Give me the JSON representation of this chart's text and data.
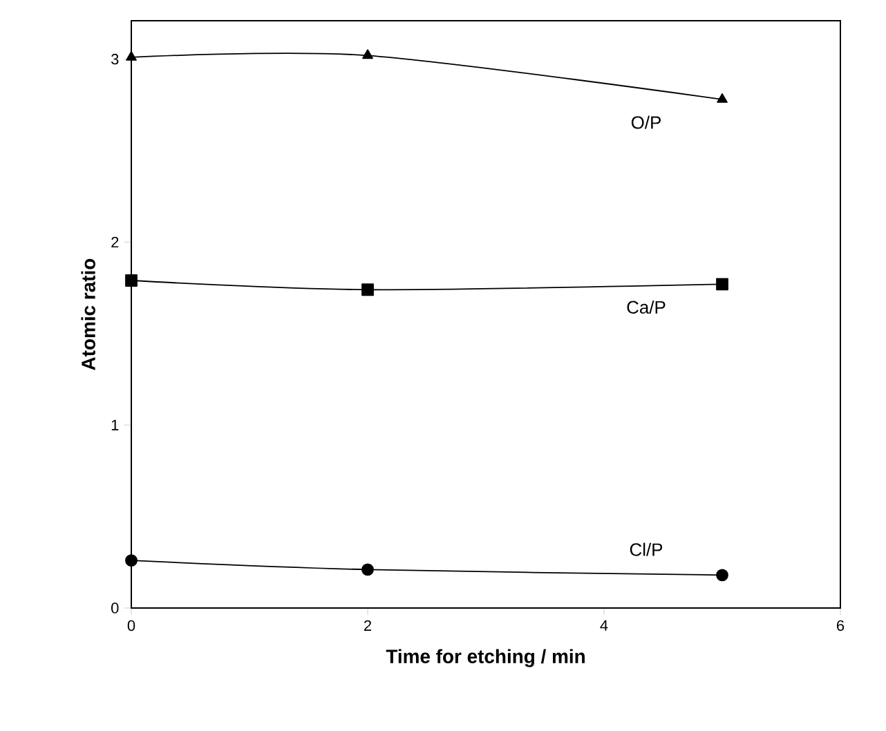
{
  "chart_data": {
    "type": "line",
    "xlabel": "Time for etching / min",
    "ylabel": "Atomic ratio",
    "xlim": [
      0,
      6
    ],
    "xticks": [
      0,
      2,
      4,
      6
    ],
    "ylim": [
      0,
      3.21
    ],
    "yticks": [
      0,
      1,
      2,
      3
    ],
    "grid": false,
    "legend": false,
    "series": [
      {
        "name": "O/P",
        "color": "#000000",
        "marker": "triangle",
        "x": [
          0,
          2,
          5
        ],
        "values": [
          3.01,
          3.02,
          2.78
        ]
      },
      {
        "name": "Ca/P",
        "color": "#000000",
        "marker": "square",
        "x": [
          0,
          2,
          5
        ],
        "values": [
          1.79,
          1.74,
          1.77
        ]
      },
      {
        "name": "Cl/P",
        "color": "#000000",
        "marker": "circle",
        "x": [
          0,
          2,
          5
        ],
        "values": [
          0.26,
          0.21,
          0.18
        ]
      }
    ]
  }
}
